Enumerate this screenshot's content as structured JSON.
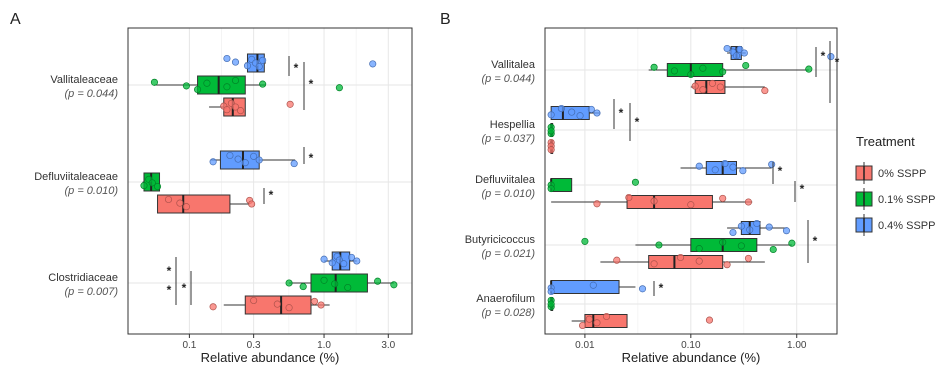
{
  "chart_data": [
    {
      "type": "box",
      "panel_label": "A",
      "xlabel": "Relative abundance (%)",
      "xscale": "log",
      "xlim": [
        0.035,
        4.5
      ],
      "xticks": [
        {
          "value": 0.1,
          "label": "0.1"
        },
        {
          "value": 0.3,
          "label": "0.3"
        },
        {
          "value": 1.0,
          "label": "1.0"
        },
        {
          "value": 3.0,
          "label": "3.0"
        }
      ],
      "grid": true,
      "categories": [
        {
          "name": "Vallitaleaceae",
          "p_label": "(p = 0.044)",
          "groups": [
            {
              "treatment": "0.4% SSPP",
              "q1": 0.27,
              "median": 0.32,
              "q3": 0.36,
              "whisker_low": 0.26,
              "whisker_high": 0.37,
              "points": [
                0.19,
                0.22,
                0.27,
                0.29,
                0.31,
                0.33,
                0.35,
                2.3
              ]
            },
            {
              "treatment": "0.1% SSPP",
              "q1": 0.115,
              "median": 0.165,
              "q3": 0.26,
              "whisker_low": 0.055,
              "whisker_high": 0.37,
              "points": [
                0.055,
                0.095,
                0.115,
                0.135,
                0.19,
                0.22,
                0.35,
                1.3
              ]
            },
            {
              "treatment": "0% SSPP",
              "q1": 0.18,
              "median": 0.21,
              "q3": 0.26,
              "whisker_low": 0.14,
              "whisker_high": 0.26,
              "points": [
                0.18,
                0.19,
                0.205,
                0.22,
                0.24,
                0.56
              ]
            }
          ],
          "significance": [
            "*",
            "*"
          ]
        },
        {
          "name": "Defluviitaleaceae",
          "p_label": "(p = 0.010)",
          "groups": [
            {
              "treatment": "0.4% SSPP",
              "q1": 0.17,
              "median": 0.25,
              "q3": 0.33,
              "whisker_low": 0.145,
              "whisker_high": 0.61,
              "points": [
                0.15,
                0.2,
                0.23,
                0.26,
                0.3,
                0.33,
                0.6
              ]
            },
            {
              "treatment": "0.1% SSPP",
              "q1": 0.046,
              "median": 0.052,
              "q3": 0.06,
              "whisker_low": 0.045,
              "whisker_high": 0.06,
              "points": [
                0.046,
                0.05,
                0.053,
                0.058
              ]
            },
            {
              "treatment": "0% SSPP",
              "q1": 0.058,
              "median": 0.09,
              "q3": 0.2,
              "whisker_low": 0.058,
              "whisker_high": 0.28,
              "points": [
                0.07,
                0.085,
                0.095,
                0.28,
                0.29
              ]
            }
          ],
          "significance": [
            "*",
            "*"
          ]
        },
        {
          "name": "Clostridiaceae",
          "p_label": "(p = 0.007)",
          "groups": [
            {
              "treatment": "0.4% SSPP",
              "q1": 1.15,
              "median": 1.32,
              "q3": 1.55,
              "whisker_low": 1.0,
              "whisker_high": 1.75,
              "points": [
                1.0,
                1.15,
                1.25,
                1.3,
                1.4,
                1.6,
                1.75
              ]
            },
            {
              "treatment": "0.1% SSPP",
              "q1": 0.8,
              "median": 1.22,
              "q3": 2.1,
              "whisker_low": 0.55,
              "whisker_high": 3.3,
              "points": [
                0.55,
                0.7,
                1.0,
                1.2,
                1.5,
                2.5,
                3.3
              ]
            },
            {
              "treatment": "0% SSPP",
              "q1": 0.26,
              "median": 0.48,
              "q3": 0.8,
              "whisker_low": 0.18,
              "whisker_high": 1.1,
              "points": [
                0.15,
                0.3,
                0.45,
                0.55,
                0.85,
                0.95
              ]
            }
          ],
          "significance": [
            "*",
            "*",
            "*"
          ]
        }
      ]
    },
    {
      "type": "box",
      "panel_label": "B",
      "xlabel": "Relative abundance (%)",
      "xscale": "log",
      "xlim": [
        0.0042,
        2.4
      ],
      "xticks": [
        {
          "value": 0.01,
          "label": "0.01"
        },
        {
          "value": 0.1,
          "label": "0.10"
        },
        {
          "value": 1.0,
          "label": "1.00"
        }
      ],
      "grid": true,
      "categories": [
        {
          "name": "Vallitalea",
          "p_label": "(p = 0.044)",
          "groups": [
            {
              "treatment": "0.4% SSPP",
              "q1": 0.24,
              "median": 0.27,
              "q3": 0.3,
              "whisker_low": 0.22,
              "whisker_high": 0.33,
              "points": [
                0.22,
                0.25,
                0.27,
                0.29,
                0.32,
                2.1
              ]
            },
            {
              "treatment": "0.1% SSPP",
              "q1": 0.06,
              "median": 0.1,
              "q3": 0.2,
              "whisker_low": 0.04,
              "whisker_high": 1.3,
              "points": [
                0.045,
                0.07,
                0.1,
                0.13,
                0.2,
                0.33,
                1.3
              ]
            },
            {
              "treatment": "0% SSPP",
              "q1": 0.11,
              "median": 0.14,
              "q3": 0.21,
              "whisker_low": 0.1,
              "whisker_high": 0.5,
              "points": [
                0.11,
                0.13,
                0.16,
                0.19,
                0.5
              ]
            }
          ],
          "significance": [
            "*",
            "*"
          ]
        },
        {
          "name": "Hespellia",
          "p_label": "(p = 0.037)",
          "groups": [
            {
              "treatment": "0.4% SSPP",
              "q1": 0.0048,
              "median": 0.0062,
              "q3": 0.011,
              "whisker_low": 0.0048,
              "whisker_high": 0.014,
              "points": [
                0.0048,
                0.006,
                0.0075,
                0.009,
                0.0115,
                0.013
              ]
            },
            {
              "treatment": "0.1% SSPP",
              "q1": 0.0048,
              "median": 0.0048,
              "q3": 0.0048,
              "whisker_low": 0.0048,
              "whisker_high": 0.0048,
              "points": [
                0.0048,
                0.0048,
                0.0048
              ]
            },
            {
              "treatment": "0% SSPP",
              "q1": 0.0048,
              "median": 0.0048,
              "q3": 0.0048,
              "whisker_low": 0.0048,
              "whisker_high": 0.0048,
              "points": [
                0.0048,
                0.0048,
                0.0048
              ]
            }
          ],
          "significance": [
            "*",
            "*"
          ]
        },
        {
          "name": "Defluviitalea",
          "p_label": "(p = 0.010)",
          "groups": [
            {
              "treatment": "0.4% SSPP",
              "q1": 0.14,
              "median": 0.2,
              "q3": 0.27,
              "whisker_low": 0.08,
              "whisker_high": 0.58,
              "points": [
                0.12,
                0.17,
                0.21,
                0.25,
                0.31,
                0.58
              ]
            },
            {
              "treatment": "0.1% SSPP",
              "q1": 0.0048,
              "median": 0.0048,
              "q3": 0.0075,
              "whisker_low": 0.0048,
              "whisker_high": 0.0075,
              "points": [
                0.0048,
                0.0048,
                0.03
              ]
            },
            {
              "treatment": "0% SSPP",
              "q1": 0.025,
              "median": 0.045,
              "q3": 0.16,
              "whisker_low": 0.0048,
              "whisker_high": 0.38,
              "points": [
                0.013,
                0.026,
                0.045,
                0.1,
                0.2,
                0.35
              ]
            }
          ],
          "significance": [
            "*",
            "*"
          ]
        },
        {
          "name": "Butyricicoccus",
          "p_label": "(p = 0.021)",
          "groups": [
            {
              "treatment": "0.4% SSPP",
              "q1": 0.3,
              "median": 0.36,
              "q3": 0.45,
              "whisker_low": 0.22,
              "whisker_high": 0.8,
              "points": [
                0.25,
                0.3,
                0.36,
                0.42,
                0.55,
                0.8
              ]
            },
            {
              "treatment": "0.1% SSPP",
              "q1": 0.1,
              "median": 0.2,
              "q3": 0.42,
              "whisker_low": 0.03,
              "whisker_high": 0.9,
              "points": [
                0.01,
                0.05,
                0.12,
                0.2,
                0.3,
                0.6,
                0.9
              ]
            },
            {
              "treatment": "0% SSPP",
              "q1": 0.04,
              "median": 0.07,
              "q3": 0.2,
              "whisker_low": 0.014,
              "whisker_high": 0.5,
              "points": [
                0.02,
                0.045,
                0.08,
                0.12,
                0.22,
                0.35
              ]
            }
          ],
          "significance": [
            "*"
          ]
        },
        {
          "name": "Anaerofilum",
          "p_label": "(p = 0.028)",
          "groups": [
            {
              "treatment": "0.4% SSPP",
              "q1": 0.0048,
              "median": 0.0048,
              "q3": 0.021,
              "whisker_low": 0.0048,
              "whisker_high": 0.03,
              "points": [
                0.0048,
                0.0048,
                0.012,
                0.035
              ]
            },
            {
              "treatment": "0.1% SSPP",
              "q1": 0.0048,
              "median": 0.0048,
              "q3": 0.0048,
              "whisker_low": 0.0048,
              "whisker_high": 0.0048,
              "points": [
                0.0048,
                0.0048,
                0.0048
              ]
            },
            {
              "treatment": "0% SSPP",
              "q1": 0.01,
              "median": 0.012,
              "q3": 0.025,
              "whisker_low": 0.0075,
              "whisker_high": 0.025,
              "points": [
                0.0095,
                0.011,
                0.013,
                0.016,
                0.15
              ]
            }
          ],
          "significance": [
            "*"
          ]
        }
      ]
    }
  ],
  "legend": {
    "title": "Treatment",
    "placement": "right",
    "items": [
      {
        "label": "0% SSPP",
        "color": "#F8766D"
      },
      {
        "label": "0.1% SSPP",
        "color": "#00BA38"
      },
      {
        "label": "0.4% SSPP",
        "color": "#619CFF"
      }
    ]
  },
  "colors": {
    "0% SSPP": "#F8766D",
    "0.1% SSPP": "#00BA38",
    "0.4% SSPP": "#619CFF"
  }
}
